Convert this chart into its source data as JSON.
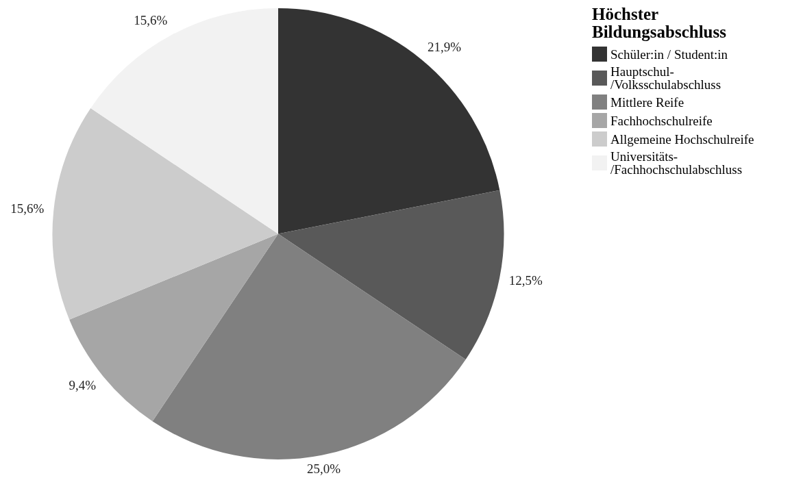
{
  "chart_data": {
    "type": "pie",
    "legend_title": "Höchster Bildungsabschluss",
    "legend": "top right",
    "categories": [
      "Schüler:in / Student:in",
      "Hauptschul-/Volksschulabschluss",
      "Mittlere Reife",
      "Fachhochschulreife",
      "Allgemeine Hochschulreife",
      "Universitäts-/Fachhochschulabschluss"
    ],
    "values": [
      21.9,
      12.5,
      25.0,
      9.4,
      15.6,
      15.6
    ],
    "value_labels": [
      "21,9%",
      "12,5%",
      "25,0%",
      "9,4%",
      "15,6%",
      "15,6%"
    ],
    "colors": [
      "#333333",
      "#595959",
      "#808080",
      "#a6a6a6",
      "#cccccc",
      "#f2f2f2"
    ]
  }
}
